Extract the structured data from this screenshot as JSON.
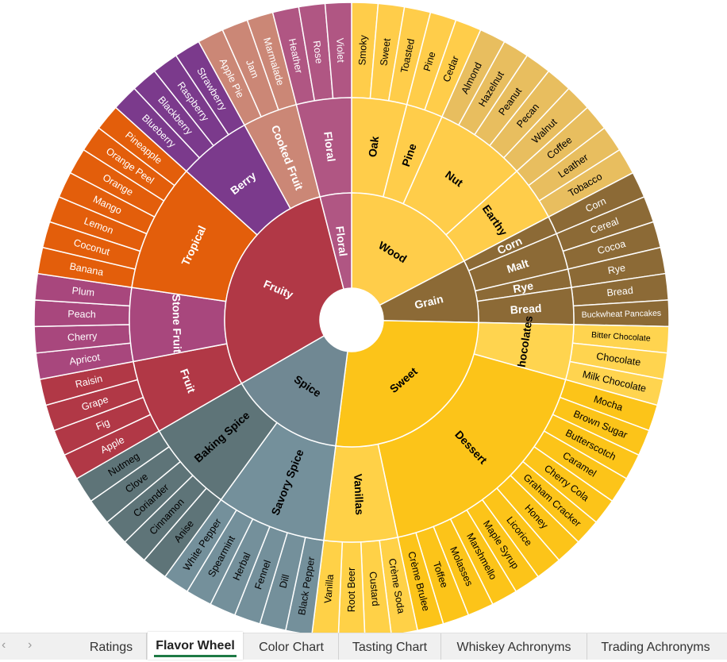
{
  "chart_data": {
    "type": "sunburst",
    "title": "",
    "children": [
      {
        "name": "Wood",
        "color": "#FFCD4A",
        "text": "#000",
        "children": [
          {
            "name": "Oak",
            "color": "#FFCD4A",
            "leaf_color": "#FFCD4A",
            "children": [
              "Smoky",
              "Sweet",
              "Toasted"
            ]
          },
          {
            "name": "Pine",
            "color": "#FFCD4A",
            "leaf_color": "#FFCD4A",
            "children": [
              "Pine",
              "Cedar"
            ]
          },
          {
            "name": "Nut",
            "color": "#FFCD4A",
            "leaf_color": "#E8BE5F",
            "children": [
              "Almond",
              "Hazelnut",
              "Peanut",
              "Pecan",
              "Walnut"
            ]
          },
          {
            "name": "Earthy",
            "color": "#FFCD4A",
            "leaf_color": "#E8BE5F",
            "children": [
              "Coffee",
              "Leather",
              "Tobacco"
            ]
          }
        ]
      },
      {
        "name": "Grain",
        "color": "#8C6A36",
        "text": "#fff",
        "children": [
          {
            "name": "Corn",
            "color": "#8C6A36",
            "leaf_color": "#8C6A36",
            "children": [
              "Corn"
            ]
          },
          {
            "name": "Malt",
            "color": "#8C6A36",
            "leaf_color": "#8C6A36",
            "children": [
              "Cereal",
              "Cocoa"
            ]
          },
          {
            "name": "Rye",
            "color": "#8C6A36",
            "leaf_color": "#8C6A36",
            "children": [
              "Rye"
            ]
          },
          {
            "name": "Bread",
            "color": "#8C6A36",
            "leaf_color": "#8C6A36",
            "children": [
              "Bread",
              "Buckwheat Pancakes"
            ]
          }
        ]
      },
      {
        "name": "Sweet",
        "color": "#FCC419",
        "text": "#000",
        "children": [
          {
            "name": "Chocolates",
            "color": "#FFD44F",
            "leaf_color": "#FFD44F",
            "children": [
              "Bitter Chocolate",
              "Chocolate",
              "Milk Chocolate"
            ]
          },
          {
            "name": "Dessert",
            "color": "#FCC419",
            "leaf_color": "#FCC419",
            "children": [
              "Mocha",
              "Brown Sugar",
              "Butterscotch",
              "Caramel",
              "Cherry Cola",
              "Graham Cracker",
              "Honey",
              "Licorice",
              "Maple Syrup",
              "Marshmello",
              "Molasses",
              "Toffee",
              "Crème Brulee"
            ]
          },
          {
            "name": "Vanillas",
            "color": "#FFD147",
            "leaf_color": "#FFD147",
            "children": [
              "Crème Soda",
              "Custard",
              "Root Beer",
              "Vanilla"
            ]
          }
        ]
      },
      {
        "name": "Spice",
        "color": "#708893",
        "text": "#000",
        "children": [
          {
            "name": "Savory Spice",
            "color": "#74909B",
            "leaf_color": "#74909B",
            "children": [
              "Black Pepper",
              "Dill",
              "Fennel",
              "Herbal",
              "Spearmint",
              "White Pepper"
            ]
          },
          {
            "name": "Baking Spice",
            "color": "#5E7478",
            "leaf_color": "#5E7478",
            "children": [
              "Anise",
              "Cinnamon",
              "Coriander",
              "Clove",
              "Nutmeg"
            ]
          }
        ]
      },
      {
        "name": "Fruity",
        "color": "#B13846",
        "text": "#fff",
        "children": [
          {
            "name": "Fruit",
            "color": "#B13846",
            "leaf_color": "#B13846",
            "children": [
              "Apple",
              "Fig",
              "Grape",
              "Raisin"
            ]
          },
          {
            "name": "Stone Fruit",
            "color": "#A8477D",
            "leaf_color": "#A8477D",
            "children": [
              "Apricot",
              "Cherry",
              "Peach",
              "Plum"
            ]
          },
          {
            "name": "Tropical",
            "color": "#E35E0B",
            "leaf_color": "#E35E0B",
            "children": [
              "Banana",
              "Coconut",
              "Lemon",
              "Mango",
              "Orange",
              "Orange Peel",
              "Pineapple"
            ]
          },
          {
            "name": "Berry",
            "color": "#7B3A8C",
            "leaf_color": "#7B3A8C",
            "children": [
              "Blueberry",
              "Blackberry",
              "Raspberry",
              "Strawberry"
            ]
          },
          {
            "name": "Cooked Fruit",
            "color": "#CB8776",
            "leaf_color": "#CB8776",
            "children": [
              "Apple Pie",
              "Jam",
              "Marmalade"
            ]
          }
        ]
      },
      {
        "name": "Floral",
        "color": "#B05683",
        "text": "#fff",
        "children": [
          {
            "name": "Floral",
            "color": "#B05683",
            "leaf_color": "#B05683",
            "children": [
              "Heather",
              "Rose",
              "Violet"
            ]
          }
        ]
      }
    ]
  },
  "sheet_tabs": {
    "items": [
      "Ratings",
      "Flavor Wheel",
      "Color Chart",
      "Tasting Chart",
      "Whiskey Achronyms",
      "Trading Achronyms"
    ],
    "active": "Flavor Wheel",
    "prev_icon": "chevron-left-icon",
    "next_icon": "chevron-right-icon",
    "prev": "‹",
    "next": "›"
  }
}
